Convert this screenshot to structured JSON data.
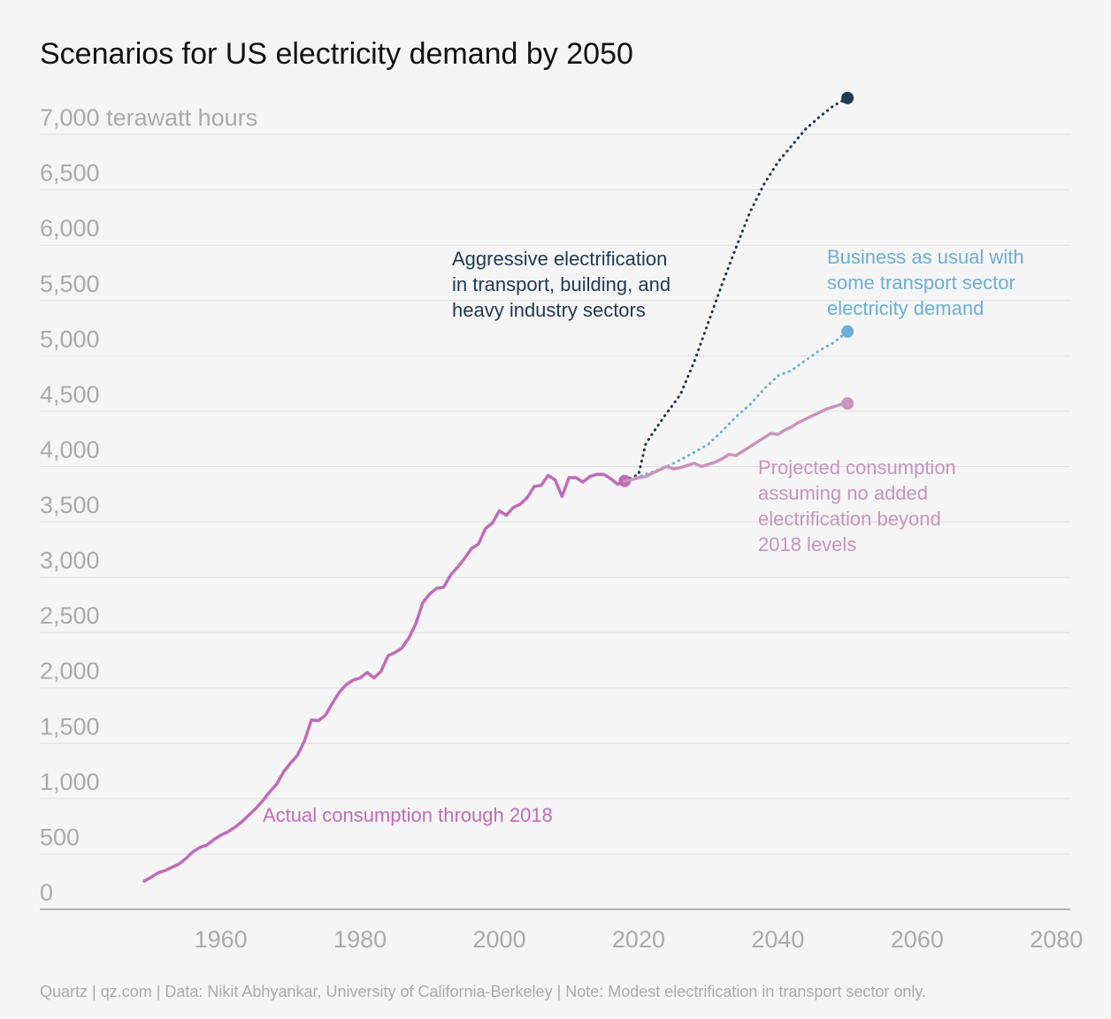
{
  "chart_data": {
    "type": "line",
    "title": "Scenarios for US electricity demand by 2050",
    "source": "Quartz | qz.com | Data: Nikit Abhyankar, University of California-Berkeley | Note: Modest electrification in transport sector only.",
    "xlim": [
      1934,
      2082
    ],
    "xticks": [
      1960,
      1980,
      2000,
      2020,
      2040,
      2060,
      2080
    ],
    "ylim": [
      0,
      7400
    ],
    "yticks": [
      0,
      500,
      {
        "value": 1000,
        "label": "1,000"
      },
      {
        "value": 1500,
        "label": "1,500"
      },
      {
        "value": 2000,
        "label": "2,000"
      },
      {
        "value": 2500,
        "label": "2,500"
      },
      {
        "value": 3000,
        "label": "3,000"
      },
      {
        "value": 3500,
        "label": "3,500"
      },
      {
        "value": 4000,
        "label": "4,000"
      },
      {
        "value": 4500,
        "label": "4,500"
      },
      {
        "value": 5000,
        "label": "5,000"
      },
      {
        "value": 5500,
        "label": "5,500"
      },
      {
        "value": 6000,
        "label": "6,000"
      },
      {
        "value": 6500,
        "label": "6,500"
      },
      {
        "value": 7000,
        "label": "7,000 terawatt hours"
      }
    ],
    "grid": true,
    "series": [
      {
        "name": [
          "Actual consumption through 2018"
        ],
        "color": "#c06bba",
        "dashed": false,
        "end_marker": true,
        "x": [
          1949,
          1950,
          1951,
          1952,
          1953,
          1954,
          1955,
          1956,
          1957,
          1958,
          1959,
          1960,
          1961,
          1962,
          1963,
          1964,
          1965,
          1966,
          1967,
          1968,
          1969,
          1970,
          1971,
          1972,
          1973,
          1974,
          1975,
          1976,
          1977,
          1978,
          1979,
          1980,
          1981,
          1982,
          1983,
          1984,
          1985,
          1986,
          1987,
          1988,
          1989,
          1990,
          1991,
          1992,
          1993,
          1994,
          1995,
          1996,
          1997,
          1998,
          1999,
          2000,
          2001,
          2002,
          2003,
          2004,
          2005,
          2006,
          2007,
          2008,
          2009,
          2010,
          2011,
          2012,
          2013,
          2014,
          2015,
          2016,
          2017,
          2018
        ],
        "values": [
          255,
          290,
          330,
          350,
          380,
          410,
          460,
          520,
          560,
          580,
          630,
          670,
          700,
          740,
          790,
          850,
          910,
          980,
          1060,
          1130,
          1240,
          1320,
          1390,
          1520,
          1710,
          1705,
          1750,
          1860,
          1960,
          2030,
          2070,
          2090,
          2140,
          2090,
          2150,
          2290,
          2320,
          2360,
          2450,
          2580,
          2770,
          2850,
          2900,
          2910,
          3020,
          3090,
          3170,
          3260,
          3300,
          3440,
          3490,
          3600,
          3560,
          3630,
          3660,
          3720,
          3820,
          3830,
          3920,
          3880,
          3730,
          3900,
          3900,
          3860,
          3910,
          3930,
          3930,
          3890,
          3840,
          3870
        ]
      },
      {
        "name": [
          "Aggressive electrification",
          "in transport, building, and",
          "heavy industry sectors"
        ],
        "color": "#1f3a55",
        "dashed": true,
        "end_marker": true,
        "x": [
          2018,
          2020,
          2021,
          2022,
          2024,
          2026,
          2028,
          2030,
          2032,
          2034,
          2036,
          2038,
          2040,
          2042,
          2044,
          2046,
          2048,
          2050
        ],
        "values": [
          3870,
          3930,
          4200,
          4300,
          4480,
          4650,
          4950,
          5300,
          5650,
          5980,
          6300,
          6550,
          6750,
          6900,
          7050,
          7160,
          7260,
          7330
        ]
      },
      {
        "name": [
          "Business as usual with",
          "some transport sector",
          "electricity demand"
        ],
        "color": "#6aafd8",
        "dashed": true,
        "end_marker": true,
        "x": [
          2018,
          2020,
          2022,
          2024,
          2026,
          2028,
          2030,
          2032,
          2034,
          2036,
          2038,
          2040,
          2042,
          2044,
          2046,
          2048,
          2050
        ],
        "values": [
          3870,
          3910,
          3950,
          4000,
          4060,
          4130,
          4200,
          4320,
          4450,
          4560,
          4700,
          4820,
          4870,
          4960,
          5050,
          5120,
          5220
        ]
      },
      {
        "name": [
          "Projected consumption",
          "assuming no added",
          "electrification beyond",
          "2018 levels"
        ],
        "color": "#c993bd",
        "dashed": false,
        "end_marker": true,
        "x": [
          2018,
          2019,
          2020,
          2021,
          2022,
          2023,
          2024,
          2025,
          2026,
          2027,
          2028,
          2029,
          2030,
          2031,
          2032,
          2033,
          2034,
          2035,
          2036,
          2037,
          2038,
          2039,
          2040,
          2041,
          2042,
          2043,
          2044,
          2045,
          2046,
          2047,
          2048,
          2049,
          2050
        ],
        "values": [
          3870,
          3880,
          3900,
          3910,
          3940,
          3970,
          4000,
          3980,
          3990,
          4010,
          4030,
          4000,
          4020,
          4040,
          4070,
          4110,
          4100,
          4140,
          4180,
          4220,
          4260,
          4300,
          4290,
          4330,
          4360,
          4400,
          4430,
          4460,
          4490,
          4520,
          4540,
          4560,
          4570
        ]
      }
    ]
  }
}
